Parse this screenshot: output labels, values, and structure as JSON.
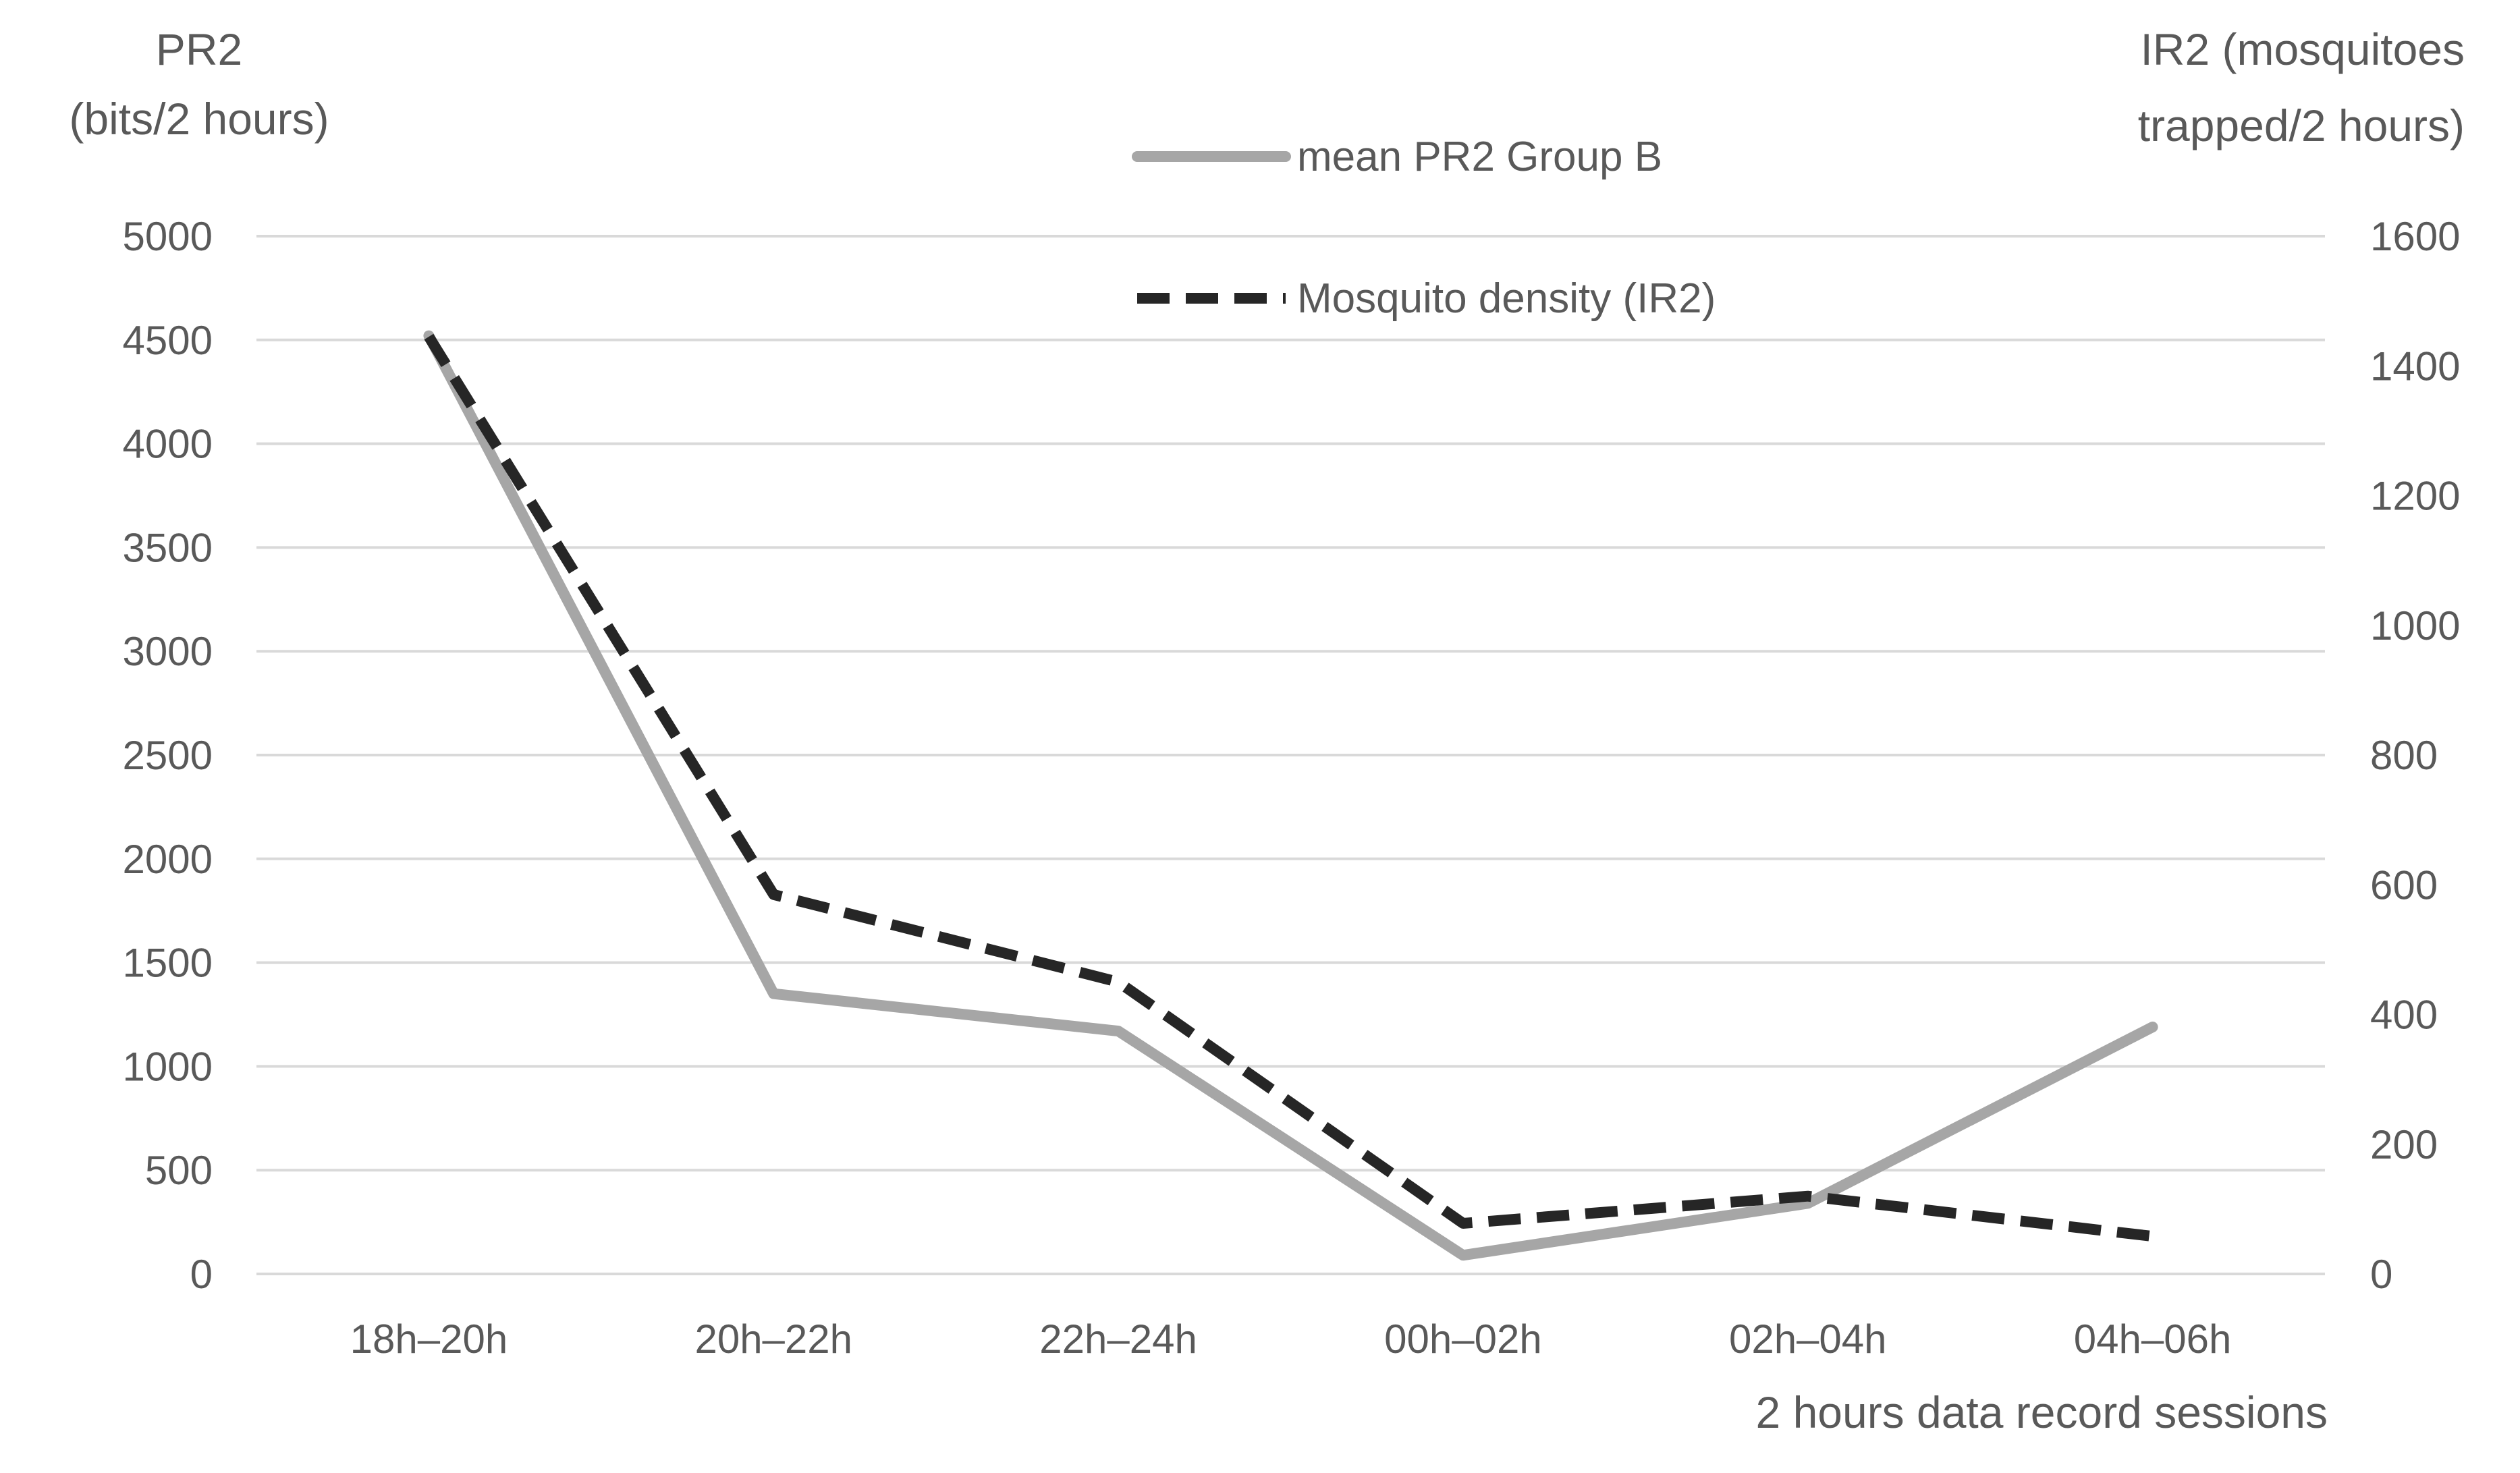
{
  "chart_data": {
    "type": "line",
    "title": "",
    "categories": [
      "18h–20h",
      "20h–22h",
      "22h–24h",
      "00h–02h",
      "02h–04h",
      "04h–06h"
    ],
    "xlabel": "2 hours data record sessions",
    "left_axis": {
      "title_lines": [
        "PR2",
        "(bits/2 hours)"
      ],
      "min": 0,
      "max": 5000,
      "step": 500
    },
    "right_axis": {
      "title_lines": [
        "IR2 (mosquitoes",
        "trapped/2 hours)"
      ],
      "min": 0,
      "max": 1600,
      "step": 200
    },
    "series": [
      {
        "name": "mean PR2 Group B",
        "axis": "left",
        "values": [
          4520,
          1350,
          1170,
          90,
          340,
          1190
        ],
        "color": "#a6a6a6",
        "style": "solid"
      },
      {
        "name": "Mosquito density (IR2)",
        "axis": "right",
        "values": [
          1445,
          585,
          450,
          78,
          120,
          58
        ],
        "color": "#262626",
        "style": "dashed"
      }
    ],
    "grid": true,
    "legend_position": "top-center",
    "colors": {
      "gridline": "#d9d9d9",
      "axis_text": "#595959"
    }
  }
}
